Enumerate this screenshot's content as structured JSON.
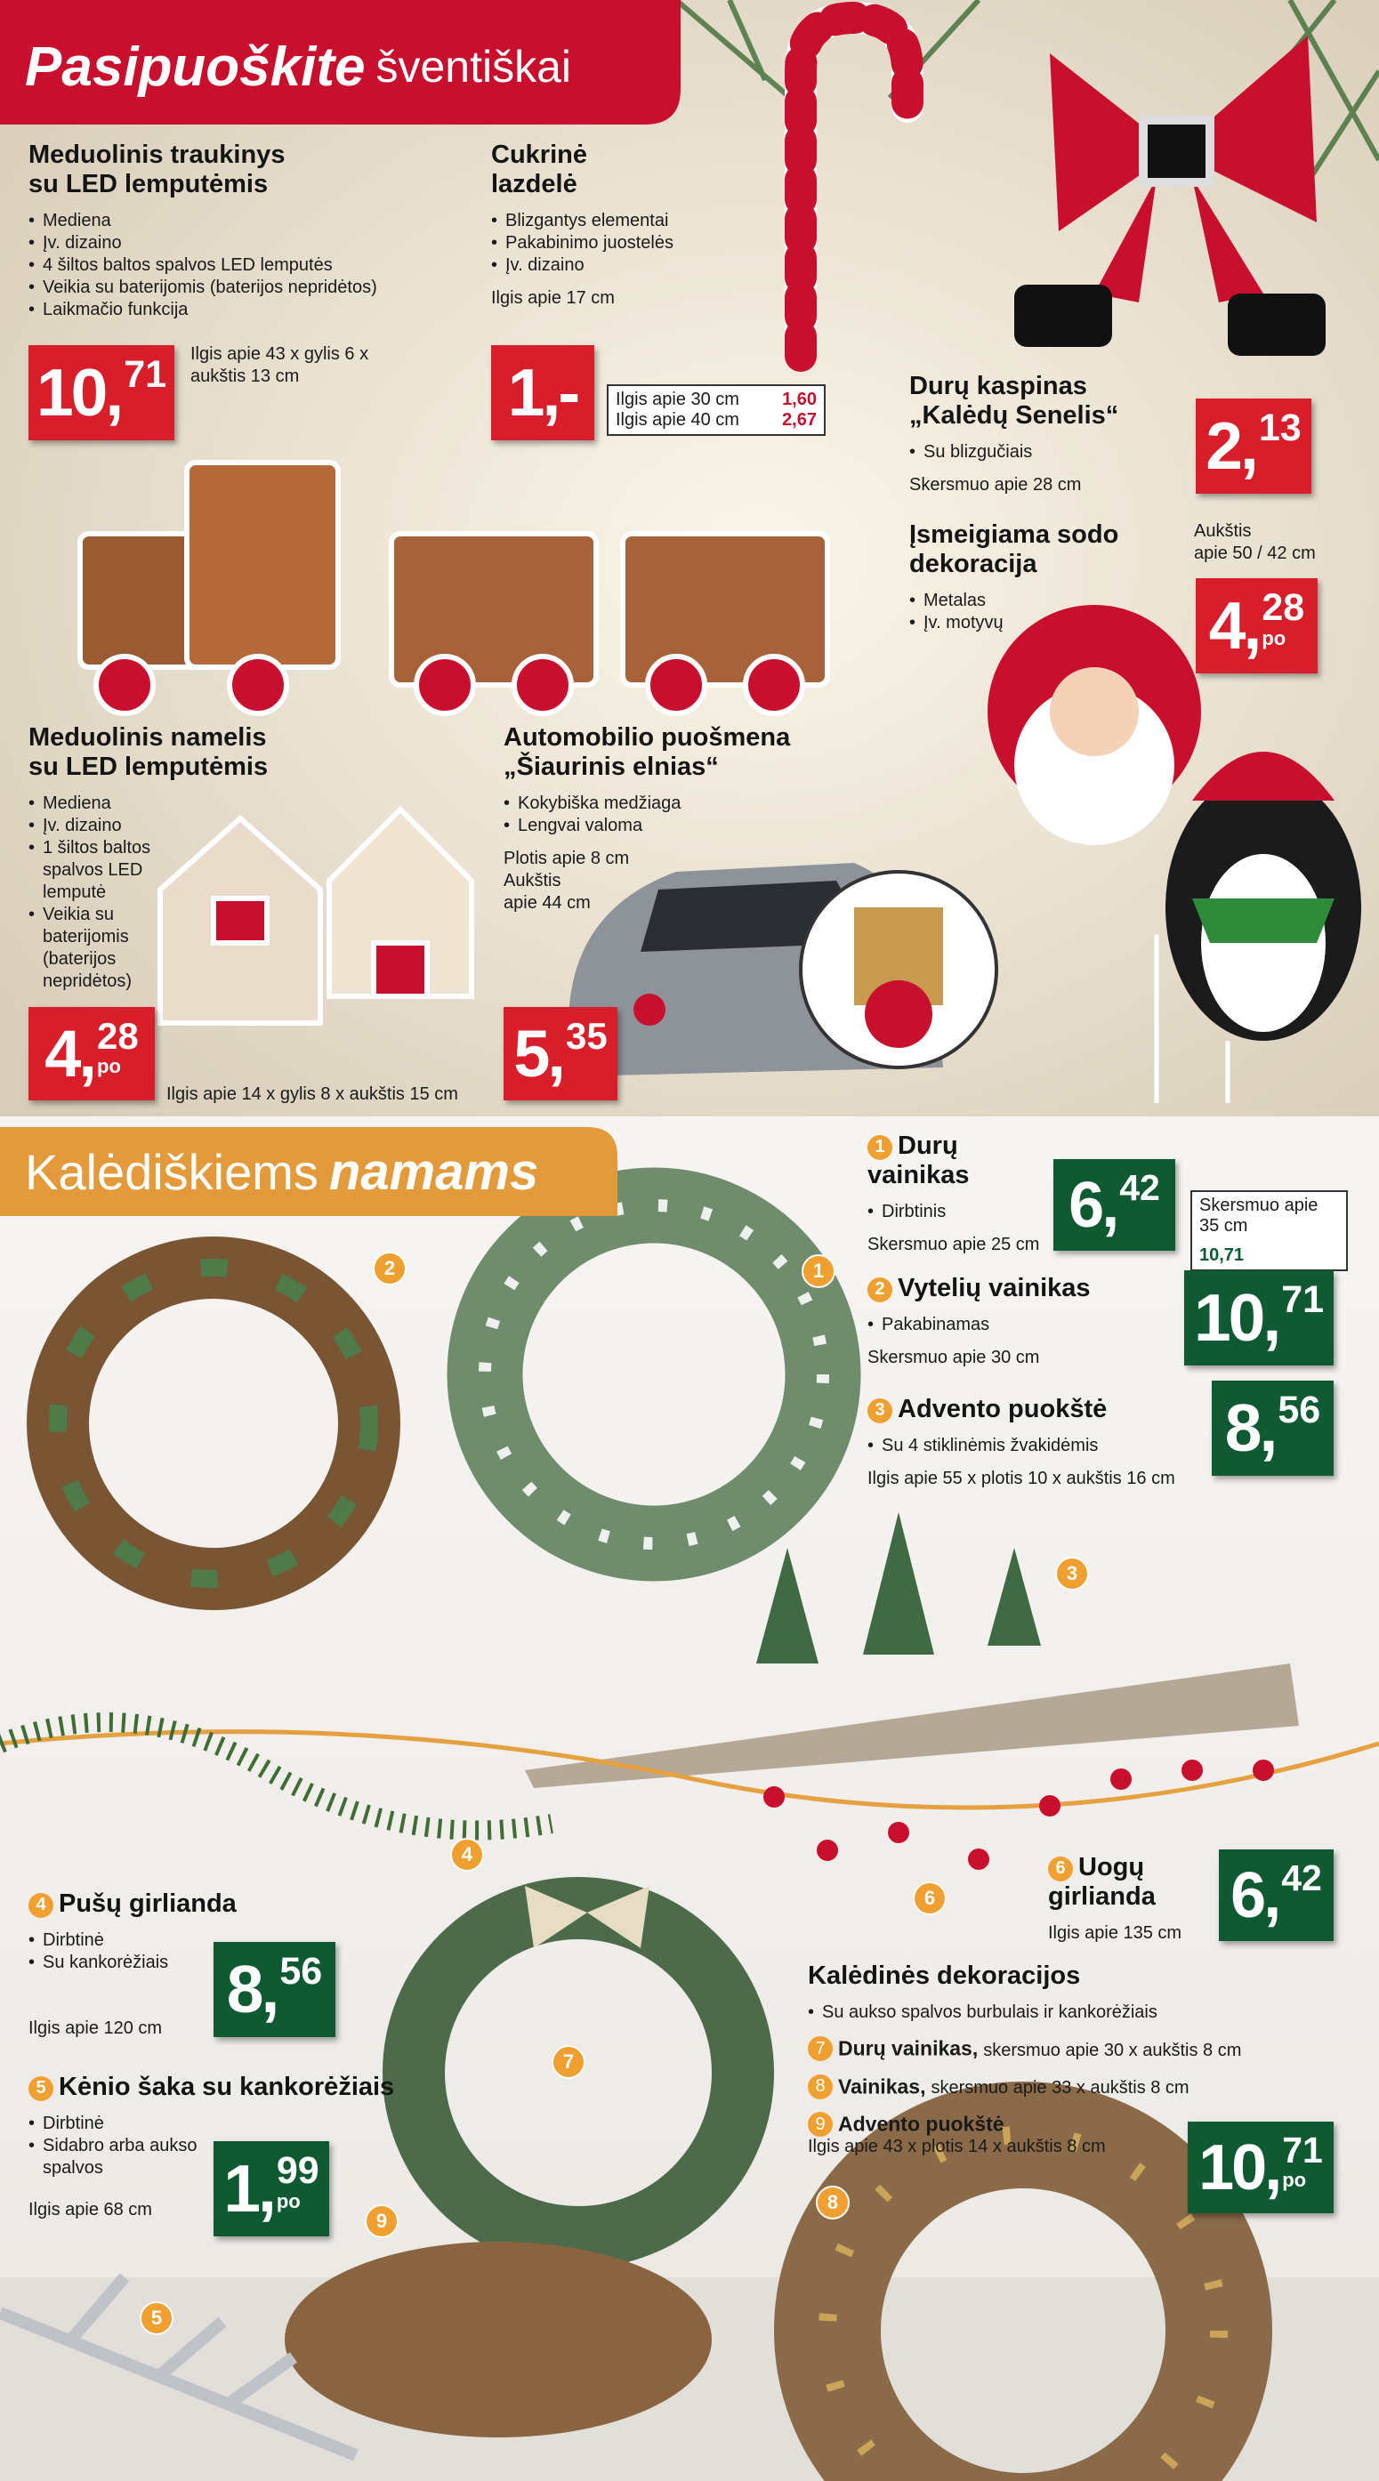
{
  "header": {
    "title_bold": "Pasipuoškite",
    "title_rest": "šventiškai"
  },
  "section2": {
    "title_rest": "Kalėdiškiems",
    "title_bold": "namams"
  },
  "products": [
    {
      "name": [
        "Meduolinis traukinys",
        "su LED lemputėmis"
      ],
      "bullets": [
        "Mediena",
        "Įv. dizaino",
        "4 šiltos baltos spalvos LED lemputės",
        "Veikia su baterijomis (baterijos nepridėtos)",
        "Laikmačio funkcija"
      ],
      "details": [
        "Ilgis apie 43 x gylis 6 x",
        "aukštis 13 cm"
      ],
      "price": {
        "main": "10,",
        "cents": "71"
      }
    },
    {
      "name": [
        "Cukrinė",
        "lazdelė"
      ],
      "bullets": [
        "Blizgantys elementai",
        "Pakabinimo juostelės",
        "Įv. dizaino"
      ],
      "details": [
        "Ilgis apie 17 cm"
      ],
      "price": {
        "main": "1,-"
      },
      "sizes": [
        {
          "label": "Ilgis apie 30 cm",
          "price": "1,60"
        },
        {
          "label": "Ilgis apie 40 cm",
          "price": "2,67"
        }
      ]
    },
    {
      "name": [
        "Durų kaspinas",
        "„Kalėdų Senelis“"
      ],
      "bullets": [
        "Su blizgučiais"
      ],
      "details": [
        "Skersmuo apie 28 cm"
      ],
      "price": {
        "main": "2,",
        "cents": "13"
      }
    },
    {
      "name": [
        "Įsmeigiama sodo",
        "dekoracija"
      ],
      "bullets": [
        "Metalas",
        "Įv. motyvų"
      ],
      "details": [
        "Aukštis",
        "apie 50 / 42 cm"
      ],
      "price": {
        "main": "4,",
        "cents": "28",
        "unit": "po"
      }
    },
    {
      "name": [
        "Meduolinis namelis",
        "su LED lemputėmis"
      ],
      "bullets": [
        "Mediena",
        "Įv. dizaino",
        "1 šiltos baltos spalvos LED lemputė",
        "Veikia su baterijomis (baterijos nepridėtos)"
      ],
      "details": [
        "Ilgis apie 14 x gylis 8 x aukštis 15 cm"
      ],
      "price": {
        "main": "4,",
        "cents": "28",
        "unit": "po"
      }
    },
    {
      "name": [
        "Automobilio puošmena",
        "„Šiaurinis elnias“"
      ],
      "bullets": [
        "Kokybiška medžiaga",
        "Lengvai valoma"
      ],
      "details": [
        "Plotis apie 8 cm",
        "Aukštis",
        "apie 44 cm"
      ],
      "price": {
        "main": "5,",
        "cents": "35"
      }
    },
    {
      "num": "1",
      "name": [
        "Durų",
        "vainikas"
      ],
      "bullets": [
        "Dirbtinis"
      ],
      "details": [
        "Skersmuo apie 25 cm"
      ],
      "price": {
        "main": "6,",
        "cents": "42"
      },
      "sizes": [
        {
          "label": "Skersmuo apie 35 cm",
          "price": "10,71"
        }
      ]
    },
    {
      "num": "2",
      "name": [
        "Vytelių vainikas"
      ],
      "bullets": [
        "Pakabinamas"
      ],
      "details": [
        "Skersmuo apie 30 cm"
      ],
      "price": {
        "main": "10,",
        "cents": "71"
      }
    },
    {
      "num": "3",
      "name": [
        "Advento puokštė"
      ],
      "bullets": [
        "Su 4 stiklinėmis žvakidėmis"
      ],
      "details": [
        "Ilgis apie 55 x plotis 10 x aukštis 16 cm"
      ],
      "price": {
        "main": "8,",
        "cents": "56"
      }
    },
    {
      "num": "4",
      "name": [
        "Pušų girlianda"
      ],
      "bullets": [
        "Dirbtinė",
        "Su kankorėžiais"
      ],
      "details": [
        "Ilgis apie 120 cm"
      ],
      "price": {
        "main": "8,",
        "cents": "56"
      }
    },
    {
      "num": "5",
      "name": [
        "Kėnio šaka su kankorėžiais"
      ],
      "bullets": [
        "Dirbtinė",
        "Sidabro arba aukso spalvos"
      ],
      "details": [
        "Ilgis apie 68 cm"
      ],
      "price": {
        "main": "1,",
        "cents": "99",
        "unit": "po"
      }
    },
    {
      "num": "6",
      "name": [
        "Uogų",
        "girlianda"
      ],
      "bullets": [],
      "details": [
        "Ilgis apie 135 cm"
      ],
      "price": {
        "main": "6,",
        "cents": "42"
      }
    }
  ],
  "set": {
    "title": "Kalėdinės dekoracijos",
    "bullets": [
      "Su aukso spalvos burbulais ir kankorėžiais"
    ],
    "items": [
      {
        "num": "7",
        "name": "Durų vainikas,",
        "detail": "skersmuo apie 30 x aukštis 8 cm"
      },
      {
        "num": "8",
        "name": "Vainikas,",
        "detail": "skersmuo apie 33 x aukštis 8 cm"
      },
      {
        "num": "9",
        "name": "Advento puokštė",
        "detail": "Ilgis apie 43 x plotis 14 x aukštis 8 cm"
      }
    ],
    "price": {
      "main": "10,",
      "cents": "71",
      "unit": "po"
    }
  }
}
